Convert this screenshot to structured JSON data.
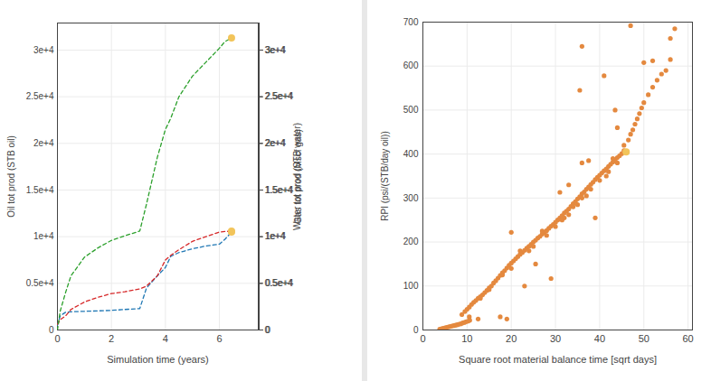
{
  "chart_data": [
    {
      "type": "line",
      "xlabel": "Simulation time (years)",
      "x": [
        0,
        0.1,
        0.3,
        0.5,
        1,
        1.5,
        2,
        2.5,
        3.05,
        3.3,
        3.7,
        4,
        4.2,
        4.5,
        5,
        5.5,
        6,
        6.2,
        6.45
      ],
      "xlim": [
        0,
        7.44
      ],
      "xticks": [
        0,
        2,
        4,
        6
      ],
      "ylabel": "Oil tot prod (STB oil)",
      "ylim": [
        0,
        32900
      ],
      "yticks": [
        0,
        {
          "value": 5000,
          "label": "0.5e+4"
        },
        {
          "value": 10000,
          "label": "1e+4"
        },
        {
          "value": 15000,
          "label": "1.5e+4"
        },
        {
          "value": 20000,
          "label": "2e+4"
        },
        {
          "value": 25000,
          "label": "2.5e+4"
        },
        {
          "value": 30000,
          "label": "3e+4"
        }
      ],
      "y2label": "Water tot prod (STB water)",
      "y2lim": [
        0,
        32900
      ],
      "y2ticks": [
        0,
        {
          "value": 5000,
          "label": "0.5e+4"
        },
        {
          "value": 10000,
          "label": "1e+4"
        },
        {
          "value": 15000,
          "label": "1.5e+4"
        },
        {
          "value": 20000,
          "label": "2e+4"
        },
        {
          "value": 25000,
          "label": "2.5e+4"
        },
        {
          "value": 30000,
          "label": "3e+4"
        }
      ],
      "y3label": "Gas tot prod (Mscf gas)",
      "y3lim": [
        0,
        32900
      ],
      "y3ticks": [
        0,
        {
          "value": 5000,
          "label": "0.5e+4"
        },
        {
          "value": 10000,
          "label": "1e+4"
        },
        {
          "value": 15000,
          "label": "1.5e+4"
        },
        {
          "value": 20000,
          "label": "2e+4"
        },
        {
          "value": 25000,
          "label": "2.5e+4"
        },
        {
          "value": 30000,
          "label": "3e+4"
        }
      ],
      "grid": true,
      "line_style": "dashed",
      "series": [
        {
          "color": "#1f77b4",
          "axis": "y",
          "values": [
            500,
            1500,
            1900,
            1950,
            2000,
            2050,
            2100,
            2200,
            2300,
            4500,
            5800,
            6700,
            7900,
            8300,
            8700,
            9000,
            9200,
            9700,
            10500
          ]
        },
        {
          "color": "#d62728",
          "axis": "y2",
          "values": [
            600,
            1100,
            1500,
            2200,
            3000,
            3500,
            3900,
            4100,
            4400,
            4700,
            5800,
            7500,
            8000,
            8600,
            9500,
            10000,
            10500,
            10550,
            10600
          ]
        },
        {
          "color": "#2ca02c",
          "axis": "y3",
          "values": [
            0,
            2000,
            4000,
            5800,
            7800,
            8800,
            9600,
            10100,
            10600,
            13500,
            18500,
            21500,
            22700,
            25000,
            27200,
            28700,
            30200,
            30900,
            31300
          ]
        }
      ],
      "highlight": {
        "x": 6.45,
        "color": "#f2c45a"
      }
    },
    {
      "type": "scatter",
      "xlabel": "Square root material balance time [sqrt days]",
      "ylabel": "RPI (psi/(STB/day oil))",
      "x": [
        3.8,
        4.2,
        4.6,
        5,
        5.4,
        5.8,
        6.2,
        6.6,
        7,
        7.4,
        7.8,
        8.2,
        8.6,
        9,
        9.4,
        9.8,
        10.2,
        10.6,
        8.8,
        9.5,
        10,
        10.5,
        11,
        11.5,
        12,
        12.5,
        13,
        13.5,
        14,
        14.5,
        15,
        15.5,
        16,
        16.5,
        17,
        17.5,
        18,
        18.5,
        19,
        19.5,
        20,
        20.5,
        21,
        21.5,
        22,
        22.5,
        23,
        23.5,
        24,
        24.5,
        25,
        25.5,
        26,
        26.5,
        27,
        27.5,
        28,
        28.5,
        29,
        29.5,
        30,
        30.5,
        31,
        31.5,
        32,
        32.5,
        33,
        33.5,
        34,
        34.5,
        35,
        35.5,
        36,
        36.5,
        37,
        37.5,
        38,
        38.5,
        39,
        39.5,
        40,
        40.5,
        41,
        41.5,
        42,
        42.5,
        43,
        43.5,
        44,
        44.5,
        45,
        45.5,
        46.5,
        47,
        47.5,
        48,
        48.5,
        49,
        49.5,
        50,
        51,
        52,
        53,
        54,
        55,
        56,
        57,
        20,
        22,
        25,
        28,
        30,
        33,
        35,
        38,
        40,
        42,
        43,
        44,
        36,
        32,
        27,
        24,
        18,
        15,
        13,
        41.5,
        37,
        34,
        31.5,
        10.5,
        12.5,
        17.5,
        19,
        20,
        23,
        25.5,
        29,
        31,
        36,
        37.5,
        35.5,
        36,
        41,
        43.5,
        44,
        47,
        50,
        52,
        56,
        39,
        33,
        45.5
      ],
      "values": [
        2,
        3,
        4,
        5,
        6,
        7,
        8,
        9,
        10,
        11,
        12,
        13,
        14,
        16,
        17,
        19,
        20,
        22,
        35,
        42,
        47,
        52,
        58,
        63,
        67,
        72,
        76,
        80,
        85,
        90,
        96,
        100,
        107,
        112,
        118,
        124,
        130,
        135,
        141,
        147,
        152,
        157,
        162,
        167,
        172,
        176,
        181,
        186,
        190,
        195,
        200,
        204,
        209,
        213,
        218,
        222,
        226,
        231,
        236,
        240,
        245,
        250,
        255,
        260,
        266,
        270,
        275,
        281,
        287,
        292,
        298,
        303,
        310,
        314,
        320,
        325,
        331,
        336,
        342,
        347,
        352,
        357,
        362,
        366,
        372,
        377,
        382,
        387,
        392,
        396,
        401,
        408,
        432,
        445,
        455,
        468,
        480,
        492,
        505,
        517,
        535,
        552,
        568,
        582,
        590,
        615,
        685,
        140,
        180,
        190,
        215,
        235,
        262,
        285,
        320,
        340,
        360,
        390,
        380,
        300,
        255,
        225,
        180,
        125,
        92,
        72,
        350,
        305,
        280,
        250,
        30,
        25,
        30,
        25,
        222,
        100,
        150,
        117,
        313,
        380,
        385,
        545,
        645,
        578,
        500,
        460,
        692,
        608,
        612,
        663,
        255,
        330,
        420
      ],
      "xlim": [
        0,
        61
      ],
      "xticks": [
        0,
        10,
        20,
        30,
        40,
        50,
        60
      ],
      "ylim": [
        0,
        700
      ],
      "yticks": [
        0,
        100,
        200,
        300,
        400,
        500,
        600,
        700
      ],
      "grid": true,
      "color": "#e4893f",
      "highlight": {
        "x": 46,
        "y": 405,
        "color": "#f2c45a"
      }
    }
  ]
}
